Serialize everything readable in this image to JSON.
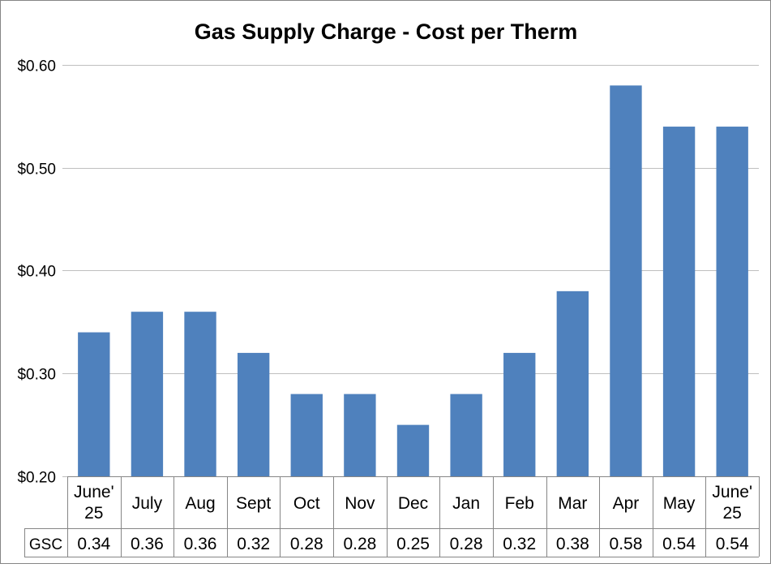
{
  "chart_data": {
    "type": "bar",
    "title": "Gas Supply Charge - Cost per Therm",
    "categories": [
      [
        "June'",
        "25"
      ],
      [
        "July"
      ],
      [
        "Aug"
      ],
      [
        "Sept"
      ],
      [
        "Oct"
      ],
      [
        "Nov"
      ],
      [
        "Dec"
      ],
      [
        "Jan"
      ],
      [
        "Feb"
      ],
      [
        "Mar"
      ],
      [
        "Apr"
      ],
      [
        "May"
      ],
      [
        "June'",
        "25"
      ]
    ],
    "series": [
      {
        "name": "GSC",
        "values": [
          0.34,
          0.36,
          0.36,
          0.32,
          0.28,
          0.28,
          0.25,
          0.28,
          0.32,
          0.38,
          0.58,
          0.54,
          0.54
        ],
        "labels": [
          "0.34",
          "0.36",
          "0.36",
          "0.32",
          "0.28",
          "0.28",
          "0.25",
          "0.28",
          "0.32",
          "0.38",
          "0.58",
          "0.54",
          "0.54"
        ],
        "color": "#4f81bd"
      }
    ],
    "ylim": [
      0.2,
      0.6
    ],
    "yticks": [
      0.2,
      0.3,
      0.4,
      0.5,
      0.6
    ],
    "ytick_labels": [
      "$0.20",
      "$0.30",
      "$0.40",
      "$0.50",
      "$0.60"
    ],
    "grid": true,
    "data_table": true,
    "colors": {
      "bar": "#4f81bd",
      "grid": "#bfbfbf",
      "border": "#868686"
    }
  }
}
